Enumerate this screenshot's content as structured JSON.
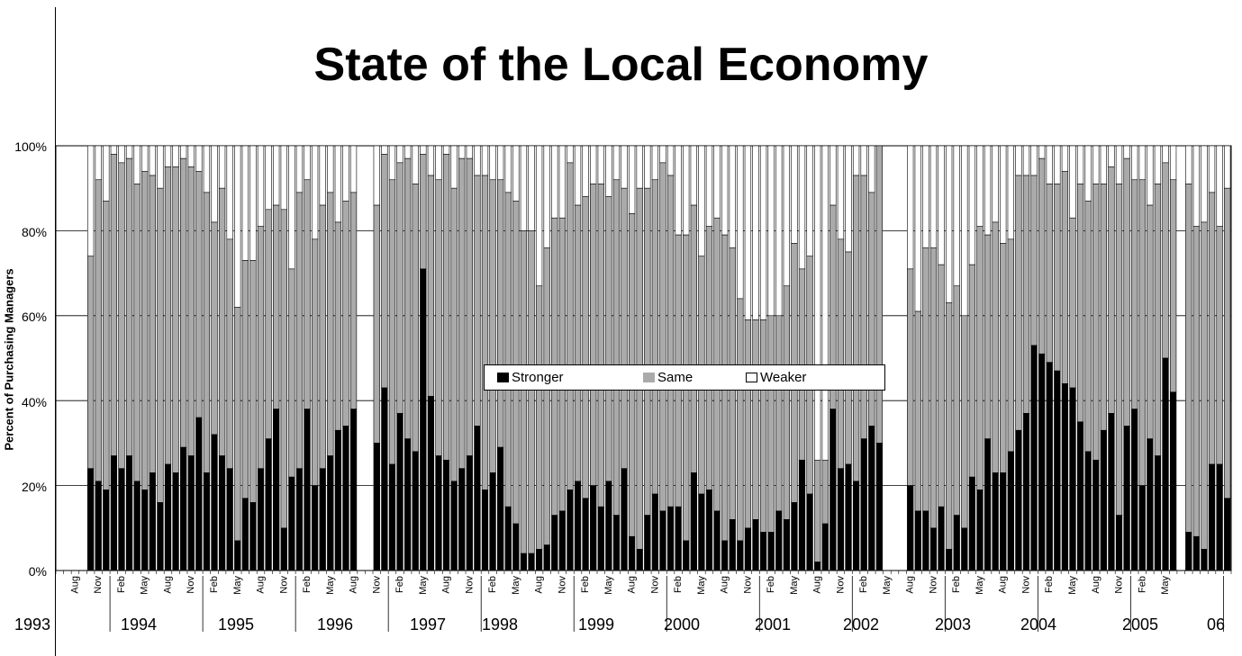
{
  "page": {
    "title": "State of the Local Economy"
  },
  "chart_data": {
    "type": "bar",
    "stacked": true,
    "title": "State of the Local Economy",
    "ylabel": "Percent of Purchasing Managers",
    "xlabel": "",
    "ylim": [
      0,
      100
    ],
    "y_ticks": [
      "0%",
      "20%",
      "40%",
      "60%",
      "80%",
      "100%"
    ],
    "grid": true,
    "legend_position": "center",
    "colors": {
      "stronger": "#000000",
      "same": "#aaaaaa",
      "weaker": "#ffffff"
    },
    "series_names": [
      "Stronger",
      "Same",
      "Weaker"
    ],
    "start_year": 1993,
    "start_month": 6,
    "stronger": [
      null,
      null,
      null,
      null,
      24,
      21,
      19,
      27,
      24,
      27,
      21,
      19,
      23,
      16,
      25,
      23,
      29,
      27,
      36,
      23,
      32,
      27,
      24,
      7,
      17,
      16,
      24,
      31,
      38,
      10,
      22,
      24,
      38,
      20,
      24,
      27,
      33,
      34,
      38,
      null,
      null,
      30,
      43,
      25,
      37,
      31,
      28,
      71,
      41,
      27,
      26,
      21,
      24,
      27,
      34,
      19,
      23,
      29,
      15,
      11,
      4,
      4,
      5,
      6,
      13,
      14,
      19,
      21,
      17,
      20,
      15,
      21,
      13,
      24,
      8,
      5,
      13,
      18,
      14,
      15,
      15,
      7,
      23,
      18,
      19,
      14,
      7,
      12,
      7,
      10,
      12,
      9,
      9,
      14,
      12,
      16,
      26,
      18,
      2,
      11,
      38,
      24,
      25,
      21,
      31,
      34,
      30,
      null,
      null,
      null,
      20,
      14,
      14,
      10,
      15,
      5,
      13,
      10,
      22,
      19,
      31,
      23,
      23,
      28,
      33,
      37,
      53,
      51,
      49,
      47,
      44,
      43,
      35,
      28,
      26,
      33,
      37,
      13,
      34,
      38,
      20,
      31,
      27,
      50,
      42,
      null,
      9,
      8,
      5,
      25,
      25,
      17
    ],
    "same": [
      null,
      null,
      null,
      null,
      50,
      71,
      68,
      71,
      72,
      70,
      70,
      75,
      70,
      74,
      70,
      72,
      68,
      68,
      58,
      66,
      50,
      63,
      54,
      55,
      56,
      57,
      57,
      54,
      48,
      75,
      49,
      65,
      54,
      58,
      62,
      62,
      49,
      53,
      51,
      null,
      null,
      56,
      55,
      67,
      59,
      66,
      63,
      27,
      52,
      65,
      72,
      69,
      73,
      70,
      59,
      74,
      69,
      63,
      74,
      76,
      76,
      76,
      62,
      70,
      70,
      69,
      77,
      65,
      71,
      71,
      76,
      67,
      79,
      66,
      76,
      85,
      77,
      74,
      82,
      78,
      64,
      72,
      63,
      56,
      62,
      69,
      72,
      64,
      57,
      49,
      47,
      50,
      51,
      46,
      55,
      61,
      45,
      56,
      24,
      15,
      48,
      54,
      50,
      72,
      62,
      55,
      70,
      null,
      null,
      null,
      51,
      47,
      62,
      66,
      57,
      58,
      54,
      50,
      50,
      62,
      48,
      59,
      54,
      50,
      60,
      56,
      40,
      46,
      42,
      44,
      50,
      40,
      56,
      59,
      65,
      58,
      58,
      78,
      63,
      54,
      72,
      55,
      64,
      46,
      50,
      null,
      82,
      73,
      77,
      64,
      56,
      73
    ],
    "x_month_labels": [
      "Aug",
      "Nov",
      "Feb",
      "May",
      "Aug",
      "Nov",
      "Feb",
      "May",
      "Aug",
      "Nov",
      "Feb",
      "May",
      "Aug",
      "Nov",
      "Feb",
      "May",
      "Aug",
      "Nov",
      "Feb",
      "May",
      "Aug",
      "Nov",
      "Feb",
      "May",
      "Aug",
      "Nov",
      "Feb",
      "May",
      "Aug",
      "Nov",
      "Feb",
      "May",
      "Aug",
      "Nov",
      "Feb",
      "May",
      "Aug",
      "Nov",
      "Feb",
      "May",
      "Aug",
      "Nov",
      "Feb",
      "May",
      "Aug",
      "Nov",
      "Feb",
      "May"
    ],
    "x_year_labels": [
      "1993",
      "1994",
      "1995",
      "1996",
      "1997",
      "1998",
      "1999",
      "2000",
      "2001",
      "2002",
      "2003",
      "2004",
      "2005",
      "06"
    ]
  }
}
